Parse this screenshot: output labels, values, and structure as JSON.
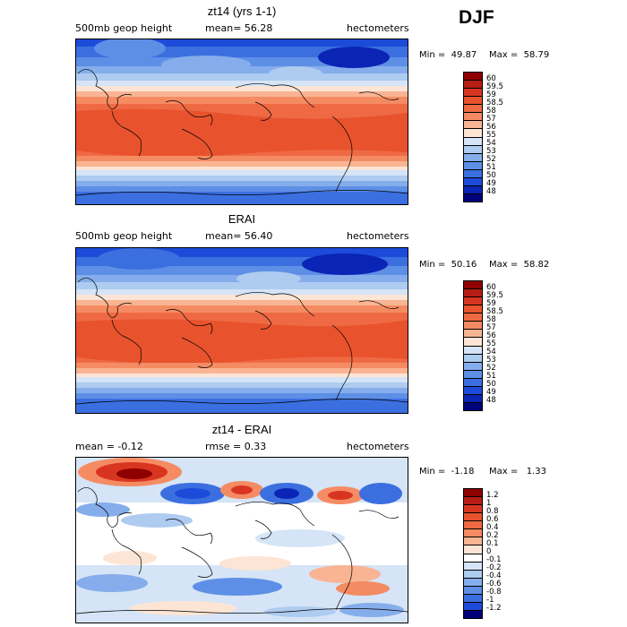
{
  "season": "DJF",
  "panels": [
    {
      "title": "zt14 (yrs 1-1)",
      "left_label": "500mb geop height",
      "mid_label": "mean=  56.28",
      "right_label": "hectometers",
      "min_label": "Min =  49.87",
      "max_label": "Max =  58.79",
      "colorbar": {
        "labels": [
          "60",
          "59.5",
          "59",
          "58.5",
          "58",
          "57",
          "56",
          "55",
          "54",
          "53",
          "52",
          "51",
          "50",
          "49",
          "48"
        ],
        "colors": [
          "#8e0000",
          "#b61d14",
          "#d83520",
          "#e8532e",
          "#ef6a44",
          "#f58b62",
          "#f9b493",
          "#fde5d5",
          "#d5e4f6",
          "#aecbf0",
          "#85adeb",
          "#5e8fe6",
          "#3b6fe0",
          "#1d4bd9",
          "#0a24b5",
          "#00007a"
        ]
      }
    },
    {
      "title": "ERAI",
      "left_label": "500mb geop height",
      "mid_label": "mean=  56.40",
      "right_label": "hectometers",
      "min_label": "Min =  50.16",
      "max_label": "Max =  58.82",
      "colorbar": {
        "labels": [
          "60",
          "59.5",
          "59",
          "58.5",
          "58",
          "57",
          "56",
          "55",
          "54",
          "53",
          "52",
          "51",
          "50",
          "49",
          "48"
        ],
        "colors": [
          "#8e0000",
          "#b61d14",
          "#d83520",
          "#e8532e",
          "#ef6a44",
          "#f58b62",
          "#f9b493",
          "#fde5d5",
          "#d5e4f6",
          "#aecbf0",
          "#85adeb",
          "#5e8fe6",
          "#3b6fe0",
          "#1d4bd9",
          "#0a24b5",
          "#00007a"
        ]
      }
    },
    {
      "title": "zt14 - ERAI",
      "left_label": "mean =   -0.12",
      "mid_label": "rmse =    0.33",
      "right_label": "hectometers",
      "min_label": "Min =  -1.18",
      "max_label": "Max =   1.33",
      "colorbar": {
        "labels": [
          "1.2",
          "1",
          "0.8",
          "0.6",
          "0.4",
          "0.2",
          "0.1",
          "0",
          "-0.1",
          "-0.2",
          "-0.4",
          "-0.6",
          "-0.8",
          "-1",
          "-1.2"
        ],
        "colors": [
          "#8e0000",
          "#b61d14",
          "#d83520",
          "#e8532e",
          "#ef6a44",
          "#f58b62",
          "#f9b493",
          "#fde5d5",
          "#ffffff",
          "#d5e4f6",
          "#aecbf0",
          "#85adeb",
          "#5e8fe6",
          "#3b6fe0",
          "#1d4bd9",
          "#00007a"
        ]
      }
    }
  ]
}
